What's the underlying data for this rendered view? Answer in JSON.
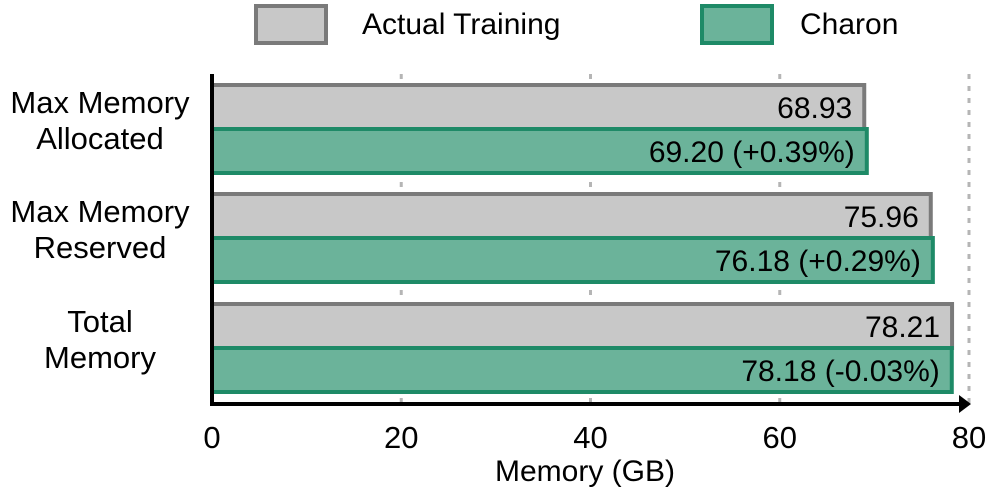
{
  "chart_data": {
    "type": "bar",
    "orientation": "horizontal",
    "categories": [
      [
        "Max Memory",
        "Allocated"
      ],
      [
        "Max Memory",
        "Reserved"
      ],
      [
        "Total",
        "Memory"
      ]
    ],
    "series": [
      {
        "name": "Actual Training",
        "color": "#c8c8c8",
        "edge": "#7a7a7a",
        "values": [
          68.93,
          75.96,
          78.21
        ],
        "labels": [
          "68.93",
          "75.96",
          "78.21"
        ]
      },
      {
        "name": "Charon",
        "color": "#6bb39a",
        "edge": "#1e8a67",
        "values": [
          69.2,
          76.18,
          78.18
        ],
        "labels": [
          "69.20 (+0.39%)",
          "76.18 (+0.29%)",
          "78.18 (-0.03%)"
        ]
      }
    ],
    "xlabel": "Memory (GB)",
    "ylabel": "",
    "xlim": [
      0,
      80
    ],
    "xticks": [
      0,
      20,
      40,
      60,
      80
    ],
    "grid": "vertical dotted",
    "legend": "top"
  }
}
